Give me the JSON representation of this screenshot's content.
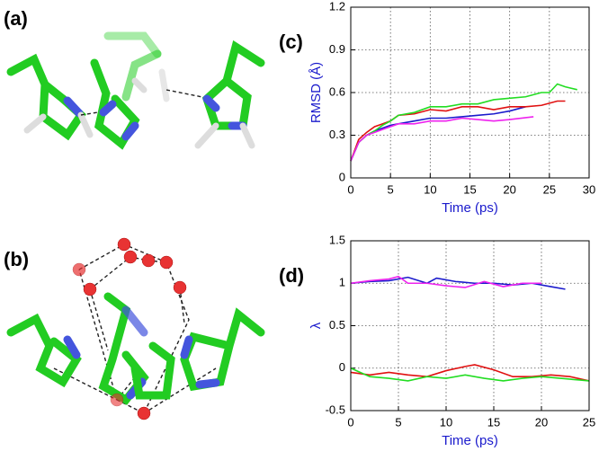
{
  "panel_labels": {
    "a": "(a)",
    "b": "(b)"
  },
  "chart_data": [
    {
      "type": "line",
      "label": "(c)",
      "xlabel": "Time (ps)",
      "ylabel": "RMSD (Å)",
      "xlim": [
        0,
        30
      ],
      "xticks": [
        0,
        5,
        10,
        15,
        20,
        25,
        30
      ],
      "ylim": [
        0,
        1.2
      ],
      "yticks": [
        0,
        0.3,
        0.6,
        0.9,
        1.2
      ],
      "grid": true,
      "series": [
        {
          "color": "#1a1acc",
          "x": [
            0,
            1,
            2,
            3,
            4,
            5,
            6,
            8,
            10,
            12,
            14,
            16,
            18,
            20,
            22
          ],
          "values": [
            0.12,
            0.25,
            0.3,
            0.33,
            0.35,
            0.37,
            0.38,
            0.4,
            0.42,
            0.42,
            0.43,
            0.44,
            0.45,
            0.47,
            0.5
          ]
        },
        {
          "color": "#e01010",
          "x": [
            0,
            1,
            2,
            3,
            4,
            5,
            6,
            8,
            10,
            12,
            14,
            16,
            18,
            20,
            22,
            24,
            26,
            27
          ],
          "values": [
            0.12,
            0.27,
            0.32,
            0.36,
            0.38,
            0.4,
            0.44,
            0.45,
            0.48,
            0.47,
            0.5,
            0.5,
            0.48,
            0.5,
            0.5,
            0.51,
            0.54,
            0.54
          ]
        },
        {
          "color": "#22dd22",
          "x": [
            0,
            1,
            2,
            3,
            4,
            5,
            6,
            8,
            10,
            12,
            14,
            16,
            18,
            20,
            22,
            24,
            25,
            26,
            27,
            28.5
          ],
          "values": [
            0.12,
            0.25,
            0.3,
            0.33,
            0.37,
            0.4,
            0.44,
            0.46,
            0.5,
            0.5,
            0.52,
            0.52,
            0.55,
            0.56,
            0.57,
            0.6,
            0.6,
            0.66,
            0.64,
            0.62
          ]
        },
        {
          "color": "#ee22ee",
          "x": [
            0,
            1,
            2,
            3,
            4,
            5,
            6,
            8,
            10,
            12,
            14,
            16,
            18,
            20,
            23
          ],
          "values": [
            0.12,
            0.25,
            0.3,
            0.32,
            0.34,
            0.36,
            0.38,
            0.38,
            0.4,
            0.4,
            0.42,
            0.41,
            0.4,
            0.41,
            0.43
          ]
        }
      ]
    },
    {
      "type": "line",
      "label": "(d)",
      "xlabel": "Time (ps)",
      "ylabel": "λ",
      "xlim": [
        0,
        25
      ],
      "xticks": [
        0,
        5,
        10,
        15,
        20,
        25
      ],
      "ylim": [
        -0.5,
        1.5
      ],
      "yticks": [
        -0.5,
        0,
        0.5,
        1,
        1.5
      ],
      "grid": true,
      "series": [
        {
          "color": "#1a1acc",
          "x": [
            0,
            2,
            4,
            6,
            8,
            9,
            11,
            13,
            15,
            17,
            19,
            21,
            22.5
          ],
          "values": [
            1.0,
            1.02,
            1.03,
            1.07,
            1.0,
            1.06,
            1.02,
            1.0,
            1.0,
            0.98,
            1.0,
            0.96,
            0.93
          ]
        },
        {
          "color": "#ee22ee",
          "x": [
            0,
            2,
            4,
            5,
            6,
            8,
            10,
            12,
            14,
            16,
            18,
            20
          ],
          "values": [
            1.0,
            1.03,
            1.05,
            1.08,
            1.0,
            1.0,
            0.97,
            0.95,
            1.02,
            0.96,
            1.0,
            1.0
          ]
        },
        {
          "color": "#e01010",
          "x": [
            0,
            2,
            4,
            6,
            8,
            10,
            12,
            13,
            15,
            17,
            19,
            21,
            23,
            25
          ],
          "values": [
            -0.05,
            -0.08,
            -0.05,
            -0.08,
            -0.1,
            -0.03,
            0.02,
            0.04,
            -0.02,
            -0.1,
            -0.1,
            -0.08,
            -0.1,
            -0.15
          ]
        },
        {
          "color": "#22dd22",
          "x": [
            0,
            2,
            4,
            6,
            8,
            10,
            12,
            14,
            16,
            18,
            20,
            22,
            24,
            25
          ],
          "values": [
            0.0,
            -0.1,
            -0.12,
            -0.15,
            -0.1,
            -0.12,
            -0.08,
            -0.12,
            -0.15,
            -0.12,
            -0.1,
            -0.12,
            -0.14,
            -0.15
          ]
        }
      ]
    }
  ]
}
